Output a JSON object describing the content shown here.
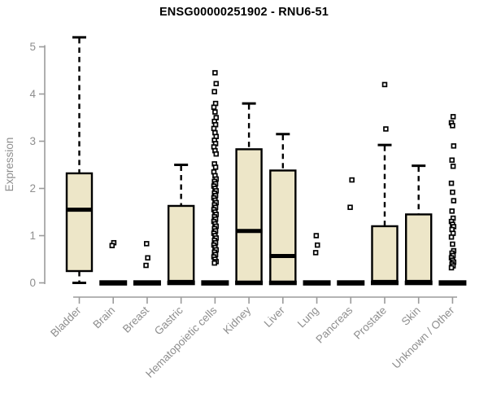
{
  "chart_data": {
    "type": "boxplot",
    "title": "ENSG00000251902 - RNU6-51",
    "ylabel": "Expression",
    "xlabel": "",
    "ylim": [
      0,
      5
    ],
    "yticks": [
      0,
      1,
      2,
      3,
      4,
      5
    ],
    "grid": false,
    "legend": false,
    "categories": [
      "Bladder",
      "Brain",
      "Breast",
      "Gastric",
      "Hematopoietic cells",
      "Kidney",
      "Liver",
      "Lung",
      "Pancreas",
      "Prostate",
      "Skin",
      "Unknown / Other"
    ],
    "series": [
      {
        "category": "Bladder",
        "whisker_low": 0,
        "q1": 0.25,
        "median": 1.55,
        "q3": 2.32,
        "whisker_high": 5.2,
        "outliers": []
      },
      {
        "category": "Brain",
        "whisker_low": 0,
        "q1": 0,
        "median": 0,
        "q3": 0,
        "whisker_high": 0,
        "outliers": [
          0.85,
          0.79
        ]
      },
      {
        "category": "Breast",
        "whisker_low": 0,
        "q1": 0,
        "median": 0,
        "q3": 0,
        "whisker_high": 0,
        "outliers": [
          0.83,
          0.53,
          0.37
        ]
      },
      {
        "category": "Gastric",
        "whisker_low": 0,
        "q1": 0,
        "median": 0.02,
        "q3": 1.63,
        "whisker_high": 2.5,
        "outliers": []
      },
      {
        "category": "Hematopoietic cells",
        "whisker_low": 0,
        "q1": 0,
        "median": 0,
        "q3": 0,
        "whisker_high": 0,
        "outliers": [
          4.45,
          4.22,
          4.05,
          3.8,
          3.72,
          3.62,
          3.5,
          3.42,
          3.35,
          3.27,
          3.18,
          3.1,
          3.02,
          2.95,
          2.88,
          2.8,
          2.73,
          2.52,
          2.45,
          2.35,
          2.27,
          2.2,
          2.15,
          2.1,
          2.05,
          2.0,
          1.95,
          1.9,
          1.85,
          1.8,
          1.75,
          1.7,
          1.65,
          1.6,
          1.55,
          1.5,
          1.45,
          1.4,
          1.35,
          1.3,
          1.25,
          1.2,
          1.15,
          1.1,
          1.05,
          1.0,
          0.95,
          0.9,
          0.85,
          0.8,
          0.75,
          0.7,
          0.65,
          0.6,
          0.55,
          0.5,
          0.45,
          0.42
        ]
      },
      {
        "category": "Kidney",
        "whisker_low": 0,
        "q1": 0,
        "median": 1.1,
        "q3": 2.83,
        "whisker_high": 3.8,
        "outliers": []
      },
      {
        "category": "Liver",
        "whisker_low": 0,
        "q1": 0,
        "median": 0.57,
        "q3": 2.38,
        "whisker_high": 3.15,
        "outliers": []
      },
      {
        "category": "Lung",
        "whisker_low": 0,
        "q1": 0,
        "median": 0,
        "q3": 0,
        "whisker_high": 0,
        "outliers": [
          1.0,
          0.8,
          0.64
        ]
      },
      {
        "category": "Pancreas",
        "whisker_low": 0,
        "q1": 0,
        "median": 0,
        "q3": 0,
        "whisker_high": 0,
        "outliers": [
          2.18,
          1.6
        ]
      },
      {
        "category": "Prostate",
        "whisker_low": 0,
        "q1": 0,
        "median": 0.02,
        "q3": 1.2,
        "whisker_high": 2.92,
        "outliers": [
          4.2,
          3.26
        ]
      },
      {
        "category": "Skin",
        "whisker_low": 0,
        "q1": 0,
        "median": 0.02,
        "q3": 1.45,
        "whisker_high": 2.48,
        "outliers": []
      },
      {
        "category": "Unknown / Other",
        "whisker_low": 0,
        "q1": 0,
        "median": 0,
        "q3": 0,
        "whisker_high": 0,
        "outliers": [
          3.52,
          3.39,
          3.33,
          2.9,
          2.6,
          2.47,
          2.11,
          1.92,
          1.74,
          1.52,
          1.37,
          1.3,
          1.24,
          1.19,
          1.13,
          1.05,
          0.97,
          0.82,
          0.68,
          0.63,
          0.58,
          0.53,
          0.48,
          0.44,
          0.4,
          0.36,
          0.32
        ]
      }
    ],
    "colors": {
      "box_fill": "#EDE6C8",
      "box_stroke": "#000000",
      "axis": "#9b9b9b",
      "tick_text": "#8e8e8e",
      "title_text": "#000000"
    }
  }
}
